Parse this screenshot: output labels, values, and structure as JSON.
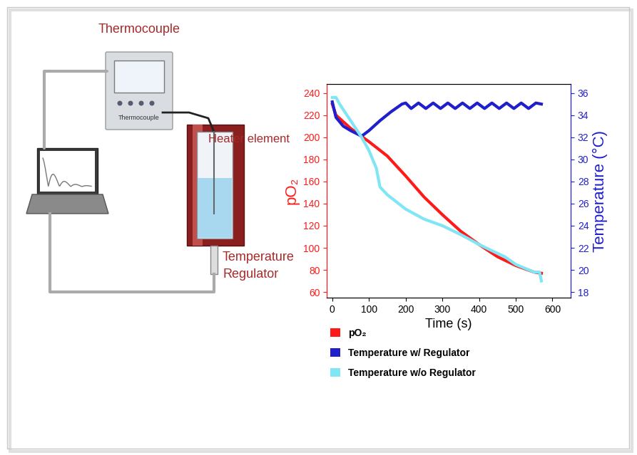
{
  "diagram": {
    "labels": {
      "thermocouple": "Thermocouple",
      "device_screen": "Thermocouple",
      "heater": "Heater element",
      "regulator": "Temperature\nRegulator"
    }
  },
  "chart_data": {
    "type": "line",
    "xlabel": "Time (s)",
    "ylabel": "pO₂",
    "y2label": "Temperature (°C)",
    "xlim": [
      -15,
      650
    ],
    "xticks": [
      0,
      100,
      200,
      300,
      400,
      500,
      600
    ],
    "ylim": [
      55,
      248
    ],
    "yticks": [
      60,
      80,
      100,
      120,
      140,
      160,
      180,
      200,
      220,
      240
    ],
    "y2lim": [
      17.5,
      36.8
    ],
    "y2ticks": [
      18,
      20,
      22,
      24,
      26,
      28,
      30,
      32,
      34,
      36
    ],
    "legend": "lower left",
    "series": [
      {
        "name": "pO₂",
        "color": "#ff1a1a",
        "x": [
          0,
          10,
          50,
          100,
          150,
          200,
          250,
          300,
          350,
          400,
          450,
          500,
          550,
          570
        ],
        "values": [
          230,
          220,
          208,
          196,
          183,
          165,
          146,
          130,
          115,
          103,
          92,
          84,
          78,
          77
        ]
      },
      {
        "name": "Temperature w/ Regulator",
        "color": "#1f1fcc",
        "axis": "y2",
        "x": [
          0,
          10,
          30,
          50,
          80,
          100,
          130,
          160,
          190,
          200,
          215,
          235,
          255,
          275,
          295,
          315,
          335,
          355,
          375,
          395,
          415,
          435,
          455,
          475,
          495,
          515,
          535,
          555,
          570
        ],
        "values": [
          35.2,
          33.8,
          33.0,
          32.6,
          32.1,
          32.6,
          33.5,
          34.3,
          35.0,
          35.1,
          34.6,
          35.1,
          34.6,
          35.1,
          34.6,
          35.1,
          34.6,
          35.1,
          34.6,
          35.1,
          34.6,
          35.1,
          34.6,
          35.1,
          34.6,
          35.1,
          34.6,
          35.1,
          35.0
        ]
      },
      {
        "name": "Temperature w/o Regulator",
        "color": "#80e5f5",
        "axis": "y2",
        "x": [
          0,
          10,
          20,
          40,
          60,
          80,
          100,
          120,
          130,
          150,
          200,
          250,
          300,
          350,
          400,
          450,
          470,
          500,
          550,
          565,
          570
        ],
        "values": [
          35.6,
          35.6,
          35.0,
          34.0,
          33.0,
          32.0,
          30.8,
          29.2,
          27.5,
          26.8,
          25.5,
          24.6,
          24.0,
          23.2,
          22.3,
          21.5,
          21.2,
          20.5,
          19.8,
          19.8,
          19.0
        ]
      }
    ]
  }
}
